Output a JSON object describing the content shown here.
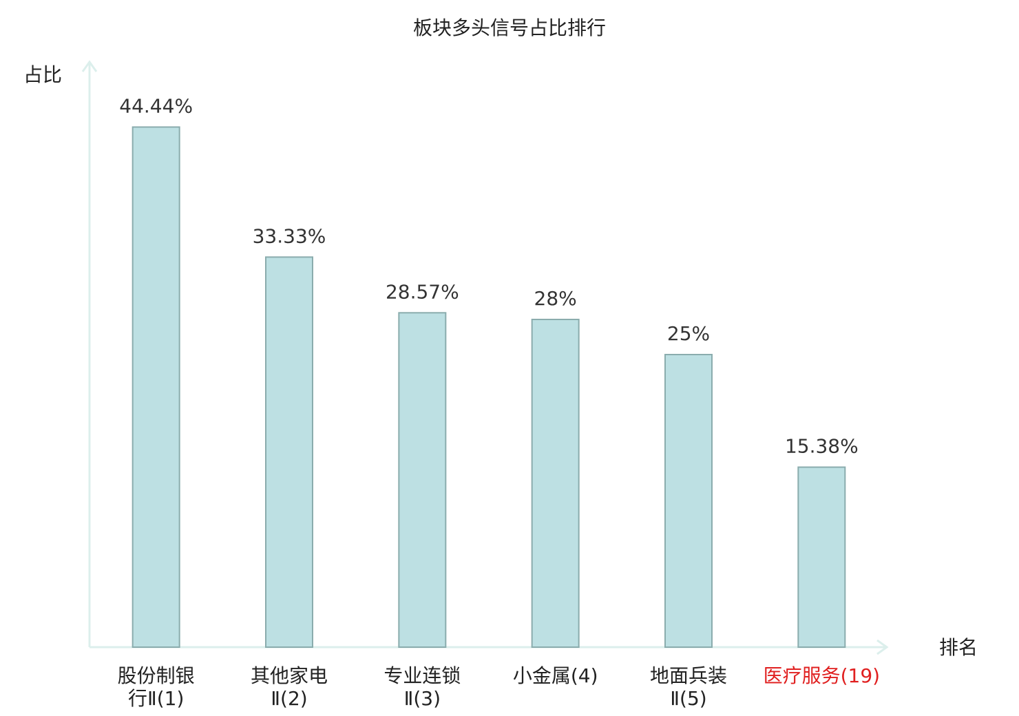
{
  "chart_data": {
    "type": "bar",
    "title": "板块多头信号占比排行",
    "y_label": "占比",
    "x_label": "排名",
    "categories": [
      "股份制银行Ⅱ(1)",
      "其他家电Ⅱ(2)",
      "专业连锁Ⅱ(3)",
      "小金属(4)",
      "地面兵装Ⅱ(5)",
      "医疗服务(19)"
    ],
    "category_colors": [
      "#222222",
      "#222222",
      "#222222",
      "#222222",
      "#222222",
      "#e02020"
    ],
    "values": [
      44.44,
      33.33,
      28.57,
      28,
      25,
      15.38
    ],
    "value_labels": [
      "44.44%",
      "33.33%",
      "28.57%",
      "28%",
      "25%",
      "15.38%"
    ],
    "color": "#bde0e3",
    "edge_color": "#8aacad",
    "ylim": [
      0,
      50
    ]
  }
}
